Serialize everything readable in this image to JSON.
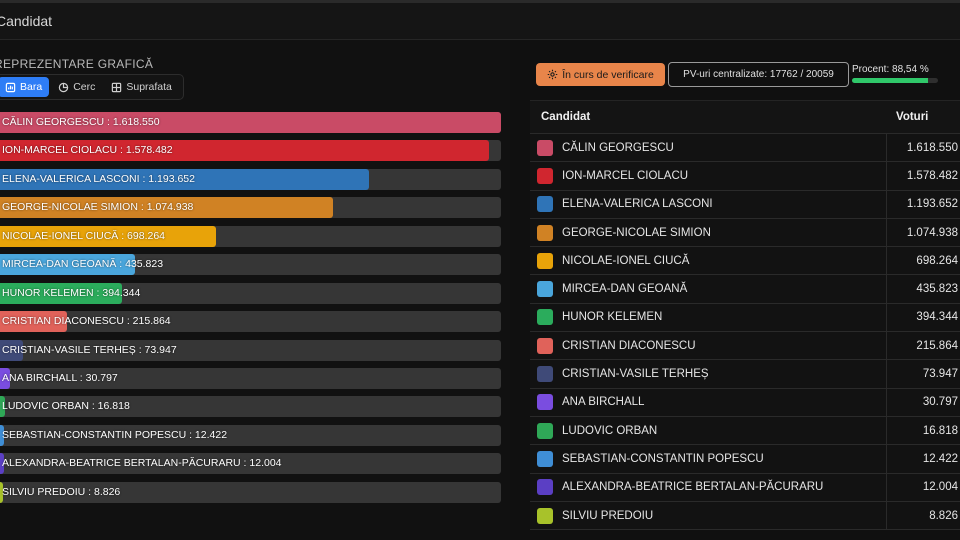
{
  "header": {
    "title": "Candidat"
  },
  "left_panel": {
    "section_label": "REPREZENTARE GRAFICĂ",
    "view_toggle": [
      {
        "label": "Bara",
        "icon": "bar-chart-icon",
        "active": true
      },
      {
        "label": "Cerc",
        "icon": "pie-chart-icon",
        "active": false
      },
      {
        "label": "Suprafata",
        "icon": "grid-icon",
        "active": false
      }
    ]
  },
  "status": {
    "verification_label": "În curs de verificare",
    "pv_label": "PV-uri centralizate: 17762 / 20059",
    "percent_label": "Procent: 88,54 %",
    "percent_value": 88.54
  },
  "table": {
    "col_candidate": "Candidat",
    "col_votes": "Voturi"
  },
  "chart_data": {
    "type": "bar",
    "orientation": "horizontal",
    "max_value": 1618550,
    "categories": [
      "CĂLIN GEORGESCU",
      "ION-MARCEL CIOLACU",
      "ELENA-VALERICA LASCONI",
      "GEORGE-NICOLAE SIMION",
      "NICOLAE-IONEL CIUCĂ",
      "MIRCEA-DAN GEOANĂ",
      "HUNOR KELEMEN",
      "CRISTIAN DIACONESCU",
      "CRISTIAN-VASILE TERHEȘ",
      "ANA BIRCHALL",
      "LUDOVIC ORBAN",
      "SEBASTIAN-CONSTANTIN POPESCU",
      "ALEXANDRA-BEATRICE BERTALAN-PĂCURARU",
      "SILVIU PREDOIU"
    ],
    "values": [
      1618550,
      1578482,
      1193652,
      1074938,
      698264,
      435823,
      394344,
      215864,
      73947,
      30797,
      16818,
      12422,
      12004,
      8826
    ],
    "value_labels": [
      "1.618.550",
      "1.578.482",
      "1.193.652",
      "1.074.938",
      "698.264",
      "435.823",
      "394.344",
      "215.864",
      "73.947",
      "30.797",
      "16.818",
      "12.422",
      "12.004",
      "8.826"
    ],
    "colors": [
      "#c94b66",
      "#d0262f",
      "#2f74b7",
      "#d08224",
      "#e8a309",
      "#4aa6dc",
      "#2bac5c",
      "#e0625a",
      "#3f4a78",
      "#7a4de0",
      "#2fa857",
      "#3f8ed6",
      "#5b3fc4",
      "#a8c22a"
    ]
  }
}
